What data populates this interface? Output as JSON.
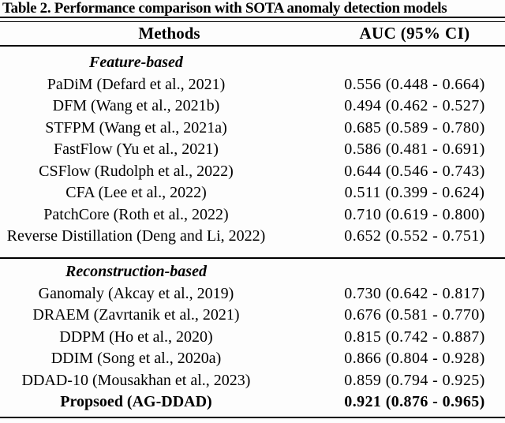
{
  "table": {
    "caption": "Table 2. Performance comparison with SOTA anomaly detection models",
    "header": {
      "methods": "Methods",
      "auc": "AUC (95% CI)"
    },
    "sections": [
      {
        "label": "Feature-based",
        "rows": [
          {
            "method": "PaDiM (Defard et al., 2021)",
            "auc": "0.556 (0.448 - 0.664)"
          },
          {
            "method": "DFM (Wang et al., 2021b)",
            "auc": "0.494 (0.462 - 0.527)"
          },
          {
            "method": "STFPM (Wang et al., 2021a)",
            "auc": "0.685 (0.589 - 0.780)"
          },
          {
            "method": "FastFlow (Yu et al., 2021)",
            "auc": "0.586 (0.481 - 0.691)"
          },
          {
            "method": "CSFlow (Rudolph et al., 2022)",
            "auc": "0.644 (0.546 - 0.743)"
          },
          {
            "method": "CFA (Lee et al., 2022)",
            "auc": "0.511 (0.399 - 0.624)"
          },
          {
            "method": "PatchCore (Roth et al., 2022)",
            "auc": "0.710 (0.619 - 0.800)"
          },
          {
            "method": "Reverse Distillation (Deng and Li, 2022)",
            "auc": "0.652 (0.552 - 0.751)"
          }
        ]
      },
      {
        "label": "Reconstruction-based",
        "rows": [
          {
            "method": "Ganomaly (Akcay et al., 2019)",
            "auc": "0.730 (0.642 - 0.817)"
          },
          {
            "method": "DRAEM (Zavrtanik et al., 2021)",
            "auc": "0.676 (0.581 - 0.770)"
          },
          {
            "method": "DDPM (Ho et al., 2020)",
            "auc": "0.815 (0.742 - 0.887)"
          },
          {
            "method": "DDIM (Song et al., 2020a)",
            "auc": "0.866 (0.804 - 0.928)"
          },
          {
            "method": "DDAD-10 (Mousakhan et al., 2023)",
            "auc": "0.859 (0.794 - 0.925)"
          },
          {
            "method": "Propsoed (AG-DDAD)",
            "auc": "0.921 (0.876 - 0.965)"
          }
        ]
      }
    ],
    "colors": {
      "text": "#000000",
      "background": "#fdfdfd",
      "rule": "#000000"
    }
  }
}
